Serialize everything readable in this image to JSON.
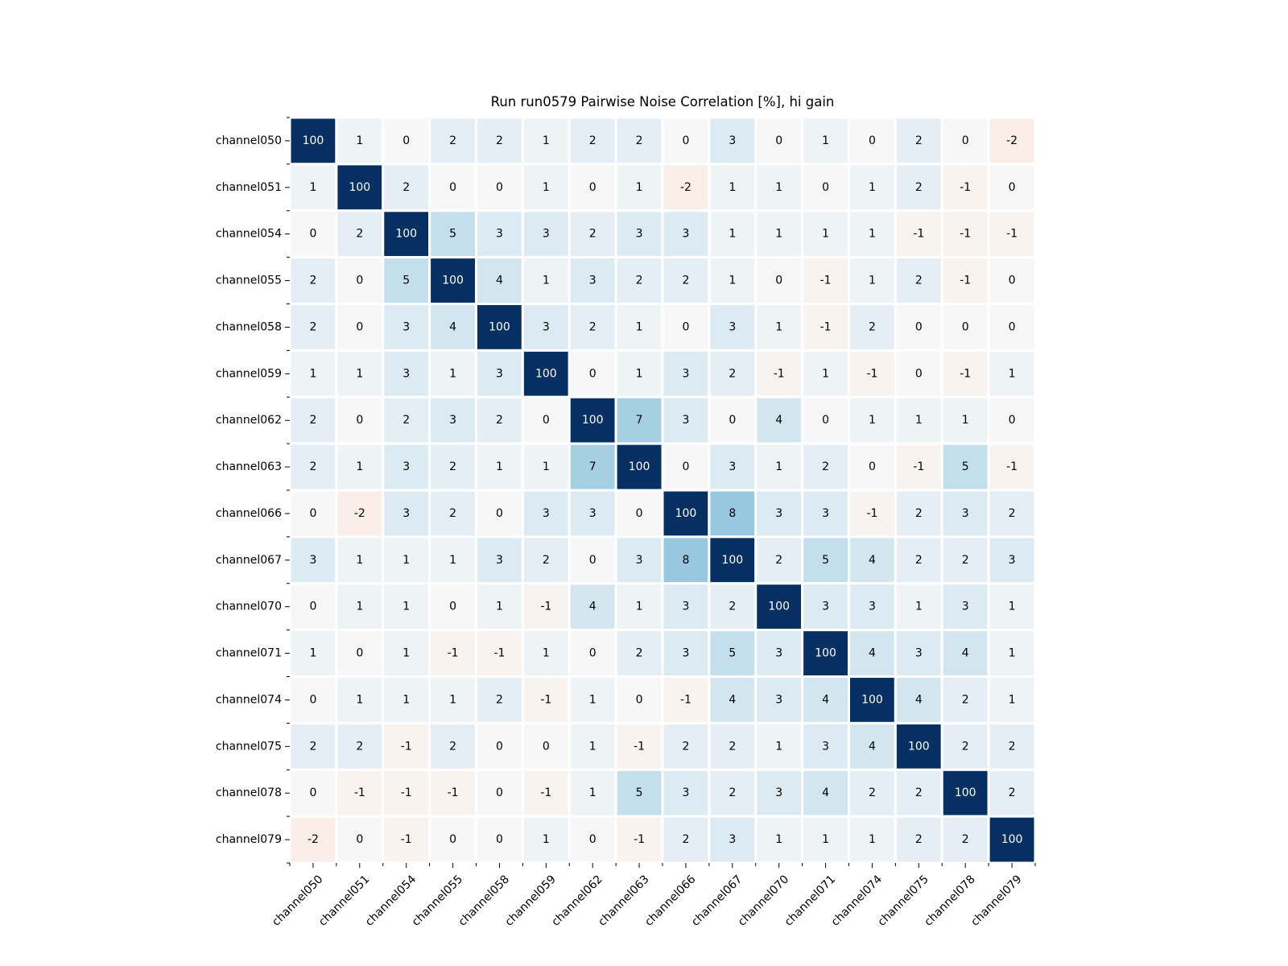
{
  "chart_data": {
    "type": "heatmap",
    "title": "Run run0579 Pairwise Noise Correlation [%], hi gain",
    "xlabel": "",
    "ylabel": "",
    "x_categories": [
      "channel050",
      "channel051",
      "channel054",
      "channel055",
      "channel058",
      "channel059",
      "channel062",
      "channel063",
      "channel066",
      "channel067",
      "channel070",
      "channel071",
      "channel074",
      "channel075",
      "channel078",
      "channel079"
    ],
    "y_categories": [
      "channel050",
      "channel051",
      "channel054",
      "channel055",
      "channel058",
      "channel059",
      "channel062",
      "channel063",
      "channel066",
      "channel067",
      "channel070",
      "channel071",
      "channel074",
      "channel075",
      "channel078",
      "channel079"
    ],
    "values": [
      [
        100,
        1,
        0,
        2,
        2,
        1,
        2,
        2,
        0,
        3,
        0,
        1,
        0,
        2,
        0,
        -2
      ],
      [
        1,
        100,
        2,
        0,
        0,
        1,
        0,
        1,
        -2,
        1,
        1,
        0,
        1,
        2,
        -1,
        0
      ],
      [
        0,
        2,
        100,
        5,
        3,
        3,
        2,
        3,
        3,
        1,
        1,
        1,
        1,
        -1,
        -1,
        -1
      ],
      [
        2,
        0,
        5,
        100,
        4,
        1,
        3,
        2,
        2,
        1,
        0,
        -1,
        1,
        2,
        -1,
        0
      ],
      [
        2,
        0,
        3,
        4,
        100,
        3,
        2,
        1,
        0,
        3,
        1,
        -1,
        2,
        0,
        0,
        0
      ],
      [
        1,
        1,
        3,
        1,
        3,
        100,
        0,
        1,
        3,
        2,
        -1,
        1,
        -1,
        0,
        -1,
        1
      ],
      [
        2,
        0,
        2,
        3,
        2,
        0,
        100,
        7,
        3,
        0,
        4,
        0,
        1,
        1,
        1,
        0
      ],
      [
        2,
        1,
        3,
        2,
        1,
        1,
        7,
        100,
        0,
        3,
        1,
        2,
        0,
        -1,
        5,
        -1
      ],
      [
        0,
        -2,
        3,
        2,
        0,
        3,
        3,
        0,
        100,
        8,
        3,
        3,
        -1,
        2,
        3,
        2
      ],
      [
        3,
        1,
        1,
        1,
        3,
        2,
        0,
        3,
        8,
        100,
        2,
        5,
        4,
        2,
        2,
        3
      ],
      [
        0,
        1,
        1,
        0,
        1,
        -1,
        4,
        1,
        3,
        2,
        100,
        3,
        3,
        1,
        3,
        1
      ],
      [
        1,
        0,
        1,
        -1,
        -1,
        1,
        0,
        2,
        3,
        5,
        3,
        100,
        4,
        3,
        4,
        1
      ],
      [
        0,
        1,
        1,
        1,
        2,
        -1,
        1,
        0,
        -1,
        4,
        3,
        4,
        100,
        4,
        2,
        1
      ],
      [
        2,
        2,
        -1,
        2,
        0,
        0,
        1,
        -1,
        2,
        2,
        1,
        3,
        4,
        100,
        2,
        2
      ],
      [
        0,
        -1,
        -1,
        -1,
        0,
        -1,
        1,
        5,
        3,
        2,
        3,
        4,
        2,
        2,
        100,
        2
      ],
      [
        -2,
        0,
        -1,
        0,
        0,
        1,
        0,
        -1,
        2,
        3,
        1,
        1,
        1,
        2,
        2,
        100
      ]
    ],
    "colormap": "RdBu (diverging, blue positive / red negative)",
    "grid": false,
    "legend": "none",
    "colors": {
      "max_positive": "#053061",
      "neutral": "#f7f7f7",
      "max_negative": "#67001f",
      "cell_border": "#ffffff"
    }
  }
}
